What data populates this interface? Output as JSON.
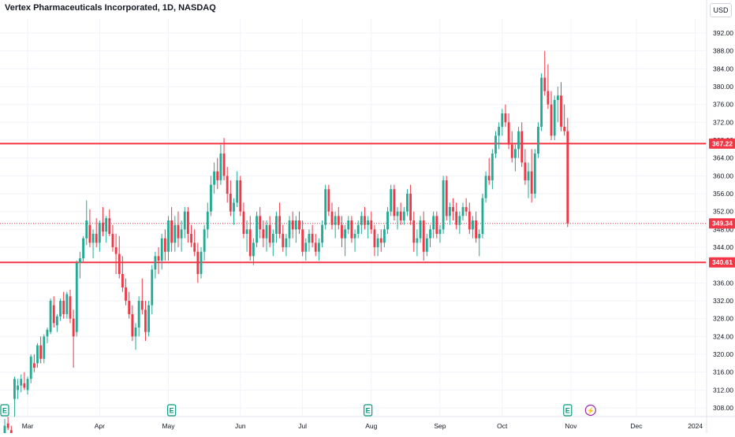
{
  "header": {
    "title": "Vertex Pharmaceuticals Incorporated, 1D, NASDAQ",
    "currency": "USD"
  },
  "colors": {
    "up": "#22ab94",
    "down": "#f23645",
    "level_line": "#f23645",
    "grid": "#f0f3fa",
    "axis_text": "#131722",
    "event_icon": "#089981",
    "lightning_icon": "#9c27b0"
  },
  "icons": {
    "earnings": "E",
    "dividend_split": "⚡"
  },
  "chart_data": {
    "type": "candlestick",
    "title": "Vertex Pharmaceuticals Incorporated, 1D, NASDAQ",
    "y_axis": {
      "position": "right",
      "ticks": [
        308,
        312,
        316,
        320,
        324,
        328,
        332,
        336,
        340,
        344,
        348,
        352,
        356,
        360,
        364,
        368,
        372,
        376,
        380,
        384,
        388,
        392
      ],
      "tick_labels": [
        "308.00",
        "312.00",
        "316.00",
        "320.00",
        "324.00",
        "328.00",
        "332.00",
        "336.00",
        "340.00",
        "344.00",
        "348.00",
        "352.00",
        "356.00",
        "360.00",
        "364.00",
        "368.00",
        "372.00",
        "376.00",
        "380.00",
        "384.00",
        "388.00",
        "392.00"
      ],
      "range": [
        306,
        394
      ]
    },
    "x_axis": {
      "labels": [
        "Mar",
        "Apr",
        "May",
        "Jun",
        "Jul",
        "Aug",
        "Sep",
        "Oct",
        "Nov",
        "Dec",
        "2024"
      ],
      "label_index": [
        7,
        29,
        50,
        72,
        91,
        112,
        133,
        152,
        173,
        193,
        211
      ]
    },
    "grid": true,
    "horizontal_levels": [
      {
        "value": 367.22,
        "label": "367.22"
      },
      {
        "value": 340.61,
        "label": "340.61"
      }
    ],
    "last_price": {
      "value": 349.34,
      "label": "349.34"
    },
    "events": [
      {
        "icon": "earnings",
        "index": 0
      },
      {
        "icon": "earnings",
        "index": 51
      },
      {
        "icon": "earnings",
        "index": 111
      },
      {
        "icon": "earnings",
        "index": 172
      },
      {
        "icon": "dividend_split",
        "index": 179
      }
    ],
    "candles": [
      [
        302.0,
        305.5,
        301.0,
        304.0
      ],
      [
        304.5,
        306.0,
        303.0,
        303.5
      ],
      [
        303.0,
        304.0,
        300.0,
        300.5
      ],
      [
        310.0,
        315.0,
        306.0,
        314.5
      ],
      [
        312.0,
        314.5,
        310.0,
        313.0
      ],
      [
        313.0,
        315.5,
        311.5,
        314.5
      ],
      [
        313.5,
        316.0,
        312.0,
        312.5
      ],
      [
        312.0,
        315.0,
        311.0,
        314.5
      ],
      [
        314.5,
        320.0,
        313.5,
        319.5
      ],
      [
        318.0,
        320.0,
        316.0,
        317.0
      ],
      [
        318.0,
        322.5,
        317.0,
        322.0
      ],
      [
        322.0,
        324.0,
        318.0,
        319.0
      ],
      [
        319.0,
        324.5,
        318.0,
        324.0
      ],
      [
        324.0,
        326.0,
        322.5,
        325.5
      ],
      [
        325.0,
        332.5,
        324.5,
        332.0
      ],
      [
        331.0,
        333.0,
        326.0,
        327.0
      ],
      [
        326.5,
        329.0,
        325.0,
        328.5
      ],
      [
        328.5,
        332.5,
        327.5,
        332.0
      ],
      [
        332.0,
        334.0,
        328.0,
        329.0
      ],
      [
        329.0,
        334.0,
        328.0,
        333.5
      ],
      [
        333.0,
        334.5,
        327.0,
        328.0
      ],
      [
        328.0,
        330.0,
        317.0,
        324.0
      ],
      [
        325.0,
        341.0,
        324.0,
        340.5
      ],
      [
        340.5,
        343.0,
        337.0,
        341.5
      ],
      [
        341.5,
        346.5,
        340.5,
        346.0
      ],
      [
        346.0,
        354.5,
        344.5,
        350.0
      ],
      [
        349.0,
        352.5,
        344.0,
        345.0
      ],
      [
        345.0,
        348.0,
        341.5,
        347.0
      ],
      [
        347.0,
        350.5,
        344.0,
        345.0
      ],
      [
        345.0,
        350.0,
        343.0,
        349.5
      ],
      [
        349.5,
        353.0,
        346.5,
        347.5
      ],
      [
        347.5,
        351.0,
        345.0,
        350.5
      ],
      [
        350.5,
        352.5,
        346.5,
        347.0
      ],
      [
        347.0,
        349.0,
        343.0,
        344.0
      ],
      [
        344.0,
        347.0,
        338.0,
        342.5
      ],
      [
        342.5,
        346.5,
        337.0,
        338.0
      ],
      [
        338.0,
        342.0,
        334.0,
        335.0
      ],
      [
        335.0,
        337.0,
        331.0,
        332.0
      ],
      [
        332.0,
        334.0,
        328.0,
        329.0
      ],
      [
        329.0,
        331.0,
        323.0,
        324.0
      ],
      [
        324.0,
        327.0,
        321.0,
        326.0
      ],
      [
        326.0,
        333.0,
        324.0,
        332.0
      ],
      [
        332.0,
        337.0,
        329.0,
        330.0
      ],
      [
        330.0,
        332.0,
        323.0,
        325.0
      ],
      [
        325.0,
        332.0,
        324.0,
        331.0
      ],
      [
        331.0,
        340.0,
        329.0,
        339.0
      ],
      [
        339.0,
        343.0,
        337.0,
        342.0
      ],
      [
        342.0,
        344.0,
        338.0,
        341.0
      ],
      [
        341.0,
        347.0,
        339.0,
        346.0
      ],
      [
        346.0,
        348.0,
        341.0,
        343.0
      ],
      [
        343.0,
        351.0,
        341.0,
        350.0
      ],
      [
        350.0,
        353.0,
        343.0,
        345.0
      ],
      [
        345.0,
        351.0,
        343.0,
        349.0
      ],
      [
        349.0,
        352.0,
        344.0,
        346.0
      ],
      [
        346.0,
        350.0,
        343.0,
        348.0
      ],
      [
        348.0,
        353.0,
        346.0,
        352.0
      ],
      [
        352.0,
        353.0,
        345.0,
        347.0
      ],
      [
        347.0,
        349.0,
        344.0,
        345.0
      ],
      [
        345.0,
        348.0,
        342.0,
        343.0
      ],
      [
        343.0,
        345.0,
        336.0,
        338.0
      ],
      [
        338.0,
        344.0,
        337.0,
        343.0
      ],
      [
        343.0,
        349.0,
        341.0,
        348.0
      ],
      [
        348.0,
        354.0,
        346.0,
        352.0
      ],
      [
        352.0,
        360.0,
        351.0,
        358.0
      ],
      [
        358.0,
        363.0,
        356.0,
        361.0
      ],
      [
        361.0,
        364.0,
        357.0,
        359.0
      ],
      [
        359.0,
        367.0,
        358.0,
        365.0
      ],
      [
        365.0,
        368.5,
        359.0,
        360.0
      ],
      [
        360.0,
        362.0,
        354.0,
        356.0
      ],
      [
        356.0,
        359.0,
        351.0,
        352.0
      ],
      [
        352.0,
        355.0,
        349.0,
        354.0
      ],
      [
        354.0,
        361.0,
        353.0,
        359.0
      ],
      [
        359.0,
        360.0,
        351.0,
        352.0
      ],
      [
        352.0,
        354.0,
        346.0,
        347.0
      ],
      [
        347.0,
        350.0,
        343.0,
        348.0
      ],
      [
        348.0,
        351.0,
        341.0,
        342.0
      ],
      [
        342.0,
        346.0,
        340.0,
        345.0
      ],
      [
        345.0,
        352.0,
        344.0,
        351.0
      ],
      [
        351.0,
        353.0,
        346.0,
        348.0
      ],
      [
        348.0,
        350.0,
        344.0,
        346.0
      ],
      [
        346.0,
        350.0,
        343.0,
        349.0
      ],
      [
        349.0,
        351.0,
        344.0,
        345.0
      ],
      [
        345.0,
        348.0,
        342.0,
        347.0
      ],
      [
        347.0,
        352.0,
        345.0,
        351.0
      ],
      [
        351.0,
        354.0,
        346.0,
        347.0
      ],
      [
        347.0,
        349.0,
        343.0,
        344.0
      ],
      [
        344.0,
        347.0,
        342.0,
        346.0
      ],
      [
        346.0,
        351.0,
        344.0,
        350.0
      ],
      [
        350.0,
        352.0,
        346.0,
        348.0
      ],
      [
        348.0,
        351.0,
        345.0,
        350.0
      ],
      [
        350.0,
        352.0,
        347.0,
        348.0
      ],
      [
        348.0,
        350.0,
        342.0,
        343.0
      ],
      [
        343.0,
        346.0,
        341.0,
        345.0
      ],
      [
        345.0,
        348.0,
        343.0,
        347.0
      ],
      [
        347.0,
        349.0,
        344.0,
        345.0
      ],
      [
        345.0,
        347.0,
        342.0,
        343.0
      ],
      [
        343.0,
        346.0,
        341.0,
        345.0
      ],
      [
        345.0,
        350.0,
        344.0,
        349.0
      ],
      [
        349.0,
        358.0,
        348.0,
        357.0
      ],
      [
        357.0,
        358.0,
        351.0,
        352.0
      ],
      [
        352.0,
        354.0,
        348.0,
        349.0
      ],
      [
        349.0,
        352.0,
        346.0,
        351.0
      ],
      [
        351.0,
        353.0,
        348.0,
        349.0
      ],
      [
        349.0,
        351.0,
        344.0,
        346.0
      ],
      [
        346.0,
        349.0,
        342.0,
        348.0
      ],
      [
        348.0,
        351.0,
        347.0,
        350.0
      ],
      [
        350.0,
        351.0,
        345.0,
        346.0
      ],
      [
        346.0,
        348.0,
        343.0,
        347.0
      ],
      [
        347.0,
        350.0,
        346.0,
        349.0
      ],
      [
        349.0,
        352.0,
        347.0,
        351.0
      ],
      [
        351.0,
        353.0,
        348.0,
        349.0
      ],
      [
        349.0,
        351.0,
        346.0,
        350.0
      ],
      [
        350.0,
        352.0,
        347.0,
        348.0
      ],
      [
        348.0,
        349.0,
        342.0,
        344.0
      ],
      [
        344.0,
        347.0,
        342.0,
        346.0
      ],
      [
        346.0,
        348.0,
        343.0,
        345.0
      ],
      [
        345.0,
        349.0,
        344.0,
        348.0
      ],
      [
        348.0,
        353.0,
        347.0,
        352.0
      ],
      [
        352.0,
        358.0,
        351.0,
        357.0
      ],
      [
        357.0,
        358.0,
        350.0,
        351.0
      ],
      [
        351.0,
        353.0,
        348.0,
        352.0
      ],
      [
        352.0,
        354.0,
        349.0,
        350.0
      ],
      [
        350.0,
        353.0,
        349.0,
        352.0
      ],
      [
        352.0,
        357.0,
        351.0,
        356.0
      ],
      [
        356.0,
        358.0,
        349.0,
        350.0
      ],
      [
        350.0,
        352.0,
        343.0,
        345.0
      ],
      [
        345.0,
        348.0,
        342.0,
        346.0
      ],
      [
        346.0,
        351.0,
        345.0,
        350.0
      ],
      [
        350.0,
        352.0,
        341.0,
        343.0
      ],
      [
        343.0,
        347.0,
        342.0,
        346.0
      ],
      [
        346.0,
        349.0,
        344.0,
        348.0
      ],
      [
        348.0,
        352.0,
        346.0,
        351.0
      ],
      [
        351.0,
        352.0,
        346.0,
        347.0
      ],
      [
        347.0,
        349.0,
        345.0,
        348.0
      ],
      [
        348.0,
        360.0,
        347.0,
        359.0
      ],
      [
        359.0,
        360.0,
        350.0,
        351.0
      ],
      [
        351.0,
        354.0,
        349.0,
        353.0
      ],
      [
        353.0,
        355.0,
        350.0,
        352.0
      ],
      [
        352.0,
        354.0,
        348.0,
        349.0
      ],
      [
        349.0,
        352.0,
        347.0,
        351.0
      ],
      [
        351.0,
        354.0,
        350.0,
        353.0
      ],
      [
        353.0,
        355.0,
        351.0,
        352.0
      ],
      [
        352.0,
        354.0,
        347.0,
        348.0
      ],
      [
        348.0,
        351.0,
        346.0,
        350.0
      ],
      [
        350.0,
        352.0,
        345.0,
        346.0
      ],
      [
        346.0,
        348.0,
        342.0,
        347.0
      ],
      [
        347.0,
        356.0,
        346.0,
        355.0
      ],
      [
        355.0,
        361.0,
        354.0,
        360.0
      ],
      [
        360.0,
        364.0,
        358.0,
        359.0
      ],
      [
        359.0,
        366.0,
        357.0,
        365.0
      ],
      [
        365.0,
        370.0,
        364.0,
        369.0
      ],
      [
        369.0,
        372.0,
        366.0,
        371.0
      ],
      [
        371.0,
        375.0,
        369.0,
        374.0
      ],
      [
        374.0,
        376.0,
        371.0,
        372.0
      ],
      [
        372.0,
        374.0,
        366.0,
        367.0
      ],
      [
        367.0,
        370.0,
        363.0,
        364.0
      ],
      [
        364.0,
        367.0,
        361.0,
        366.0
      ],
      [
        366.0,
        371.0,
        364.0,
        370.0
      ],
      [
        370.0,
        372.0,
        362.0,
        363.0
      ],
      [
        363.0,
        366.0,
        358.0,
        359.0
      ],
      [
        359.0,
        363.0,
        355.0,
        361.0
      ],
      [
        361.0,
        366.0,
        354.0,
        356.0
      ],
      [
        356.0,
        366.0,
        355.0,
        365.0
      ],
      [
        365.0,
        372.0,
        364.0,
        371.0
      ],
      [
        371.0,
        383.0,
        370.0,
        382.0
      ],
      [
        382.0,
        388.0,
        378.0,
        379.0
      ],
      [
        379.0,
        385.0,
        375.0,
        376.0
      ],
      [
        376.0,
        379.0,
        368.0,
        369.0
      ],
      [
        369.0,
        378.0,
        368.0,
        377.0
      ],
      [
        377.0,
        380.0,
        372.0,
        378.0
      ],
      [
        378.0,
        381.0,
        370.0,
        371.0
      ],
      [
        371.0,
        376.0,
        369.0,
        370.0
      ],
      [
        370.0,
        373.0,
        348.5,
        349.34
      ]
    ],
    "candle_x_start": 6,
    "candle_spacing": 4.15
  }
}
